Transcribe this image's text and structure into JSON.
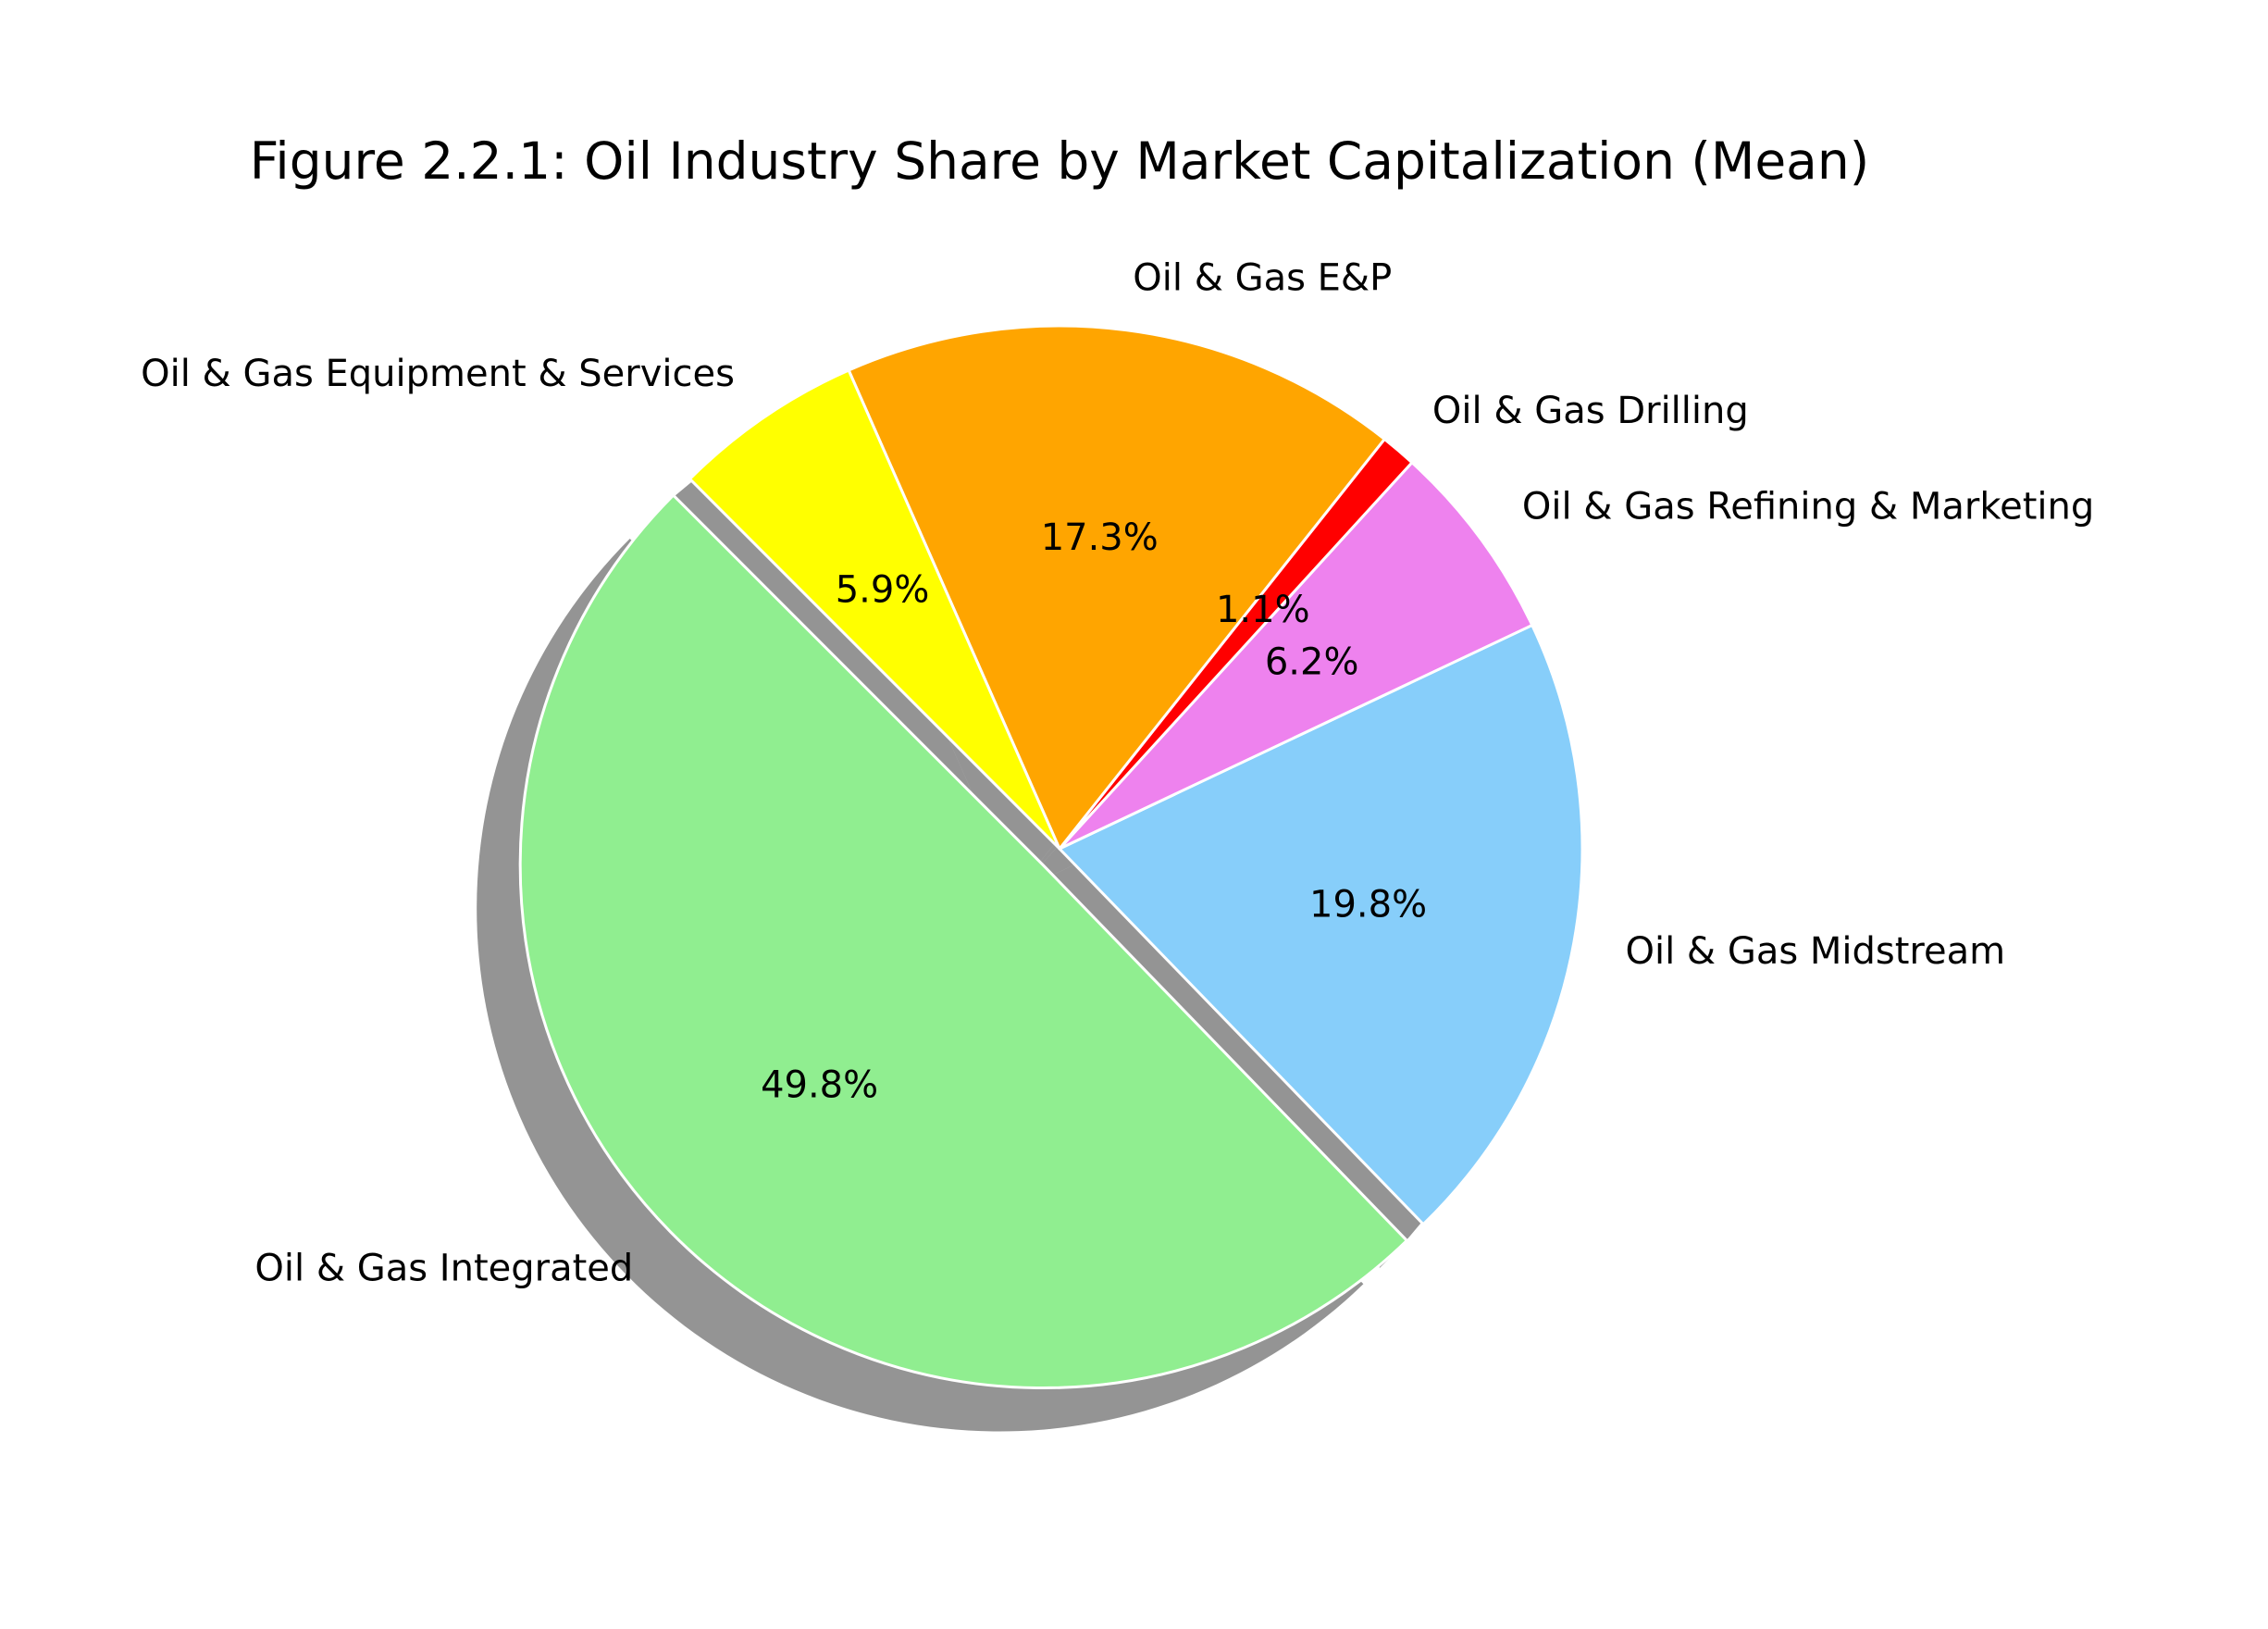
{
  "chart_data": {
    "type": "pie",
    "title": "Figure 2.2.1: Oil Industry Share by Market Capitalization (Mean)",
    "start_angle_deg": 135,
    "direction": "counterclockwise",
    "shadow": true,
    "explode_first_slice": true,
    "slices": [
      {
        "label": "Oil & Gas Integrated",
        "value": 49.8,
        "pct_text": "49.8%",
        "color": "#90ee90"
      },
      {
        "label": "Oil & Gas Midstream",
        "value": 19.8,
        "pct_text": "19.8%",
        "color": "#87cefa"
      },
      {
        "label": "Oil & Gas Refining & Marketing",
        "value": 6.2,
        "pct_text": "6.2%",
        "color": "#ee82ee"
      },
      {
        "label": "Oil & Gas Drilling",
        "value": 1.1,
        "pct_text": "1.1%",
        "color": "#ff0000"
      },
      {
        "label": "Oil & Gas E&P",
        "value": 17.3,
        "pct_text": "17.3%",
        "color": "#ffa500"
      },
      {
        "label": "Oil & Gas Equipment & Services",
        "value": 5.9,
        "pct_text": "5.9%",
        "color": "#ffff00"
      }
    ]
  }
}
